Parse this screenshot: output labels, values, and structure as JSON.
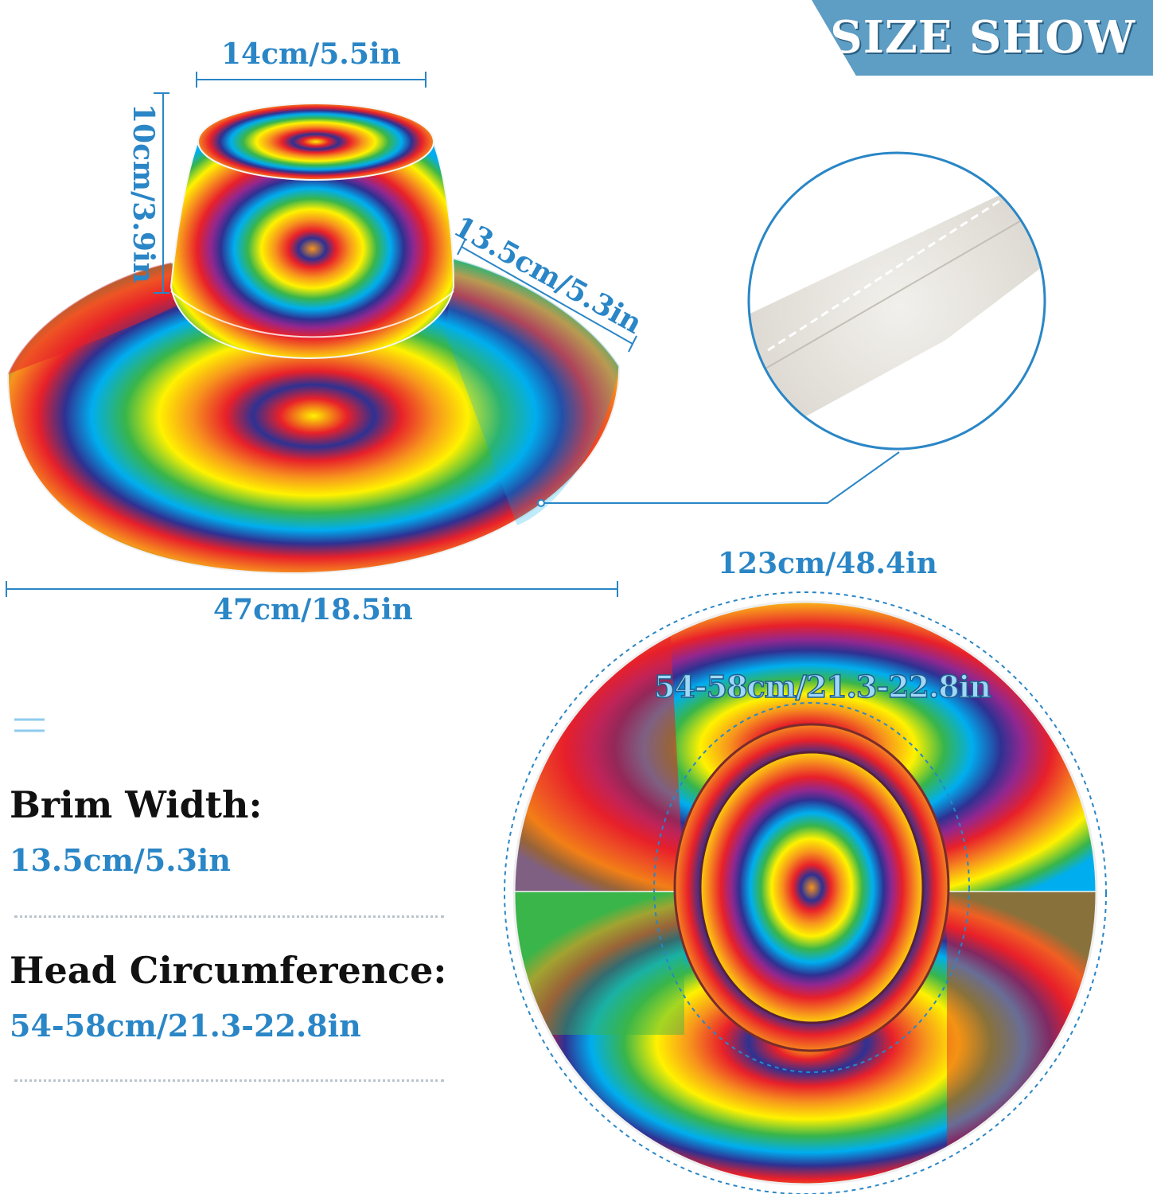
{
  "banner": {
    "title": "SIZE SHOW"
  },
  "dimensions": {
    "top_width": "14cm/5.5in",
    "height": "10cm/3.9in",
    "brim_diag": "13.5cm/5.3in",
    "total_width": "47cm/18.5in",
    "outer_circumference": "123cm/48.4in",
    "head_inner": "54-58cm/21.3-22.8in"
  },
  "specs": [
    {
      "label": "Brim Width:",
      "value": "13.5cm/5.3in"
    },
    {
      "label": "Head Circumference:",
      "value": "54-58cm/21.3-22.8in"
    }
  ],
  "colors": {
    "accent": "#2a86c6",
    "banner": "#5e9dc4",
    "tiedye": [
      "#e8202a",
      "#f7941d",
      "#fff200",
      "#39b54a",
      "#00aeef",
      "#2e3192",
      "#92278f"
    ]
  }
}
